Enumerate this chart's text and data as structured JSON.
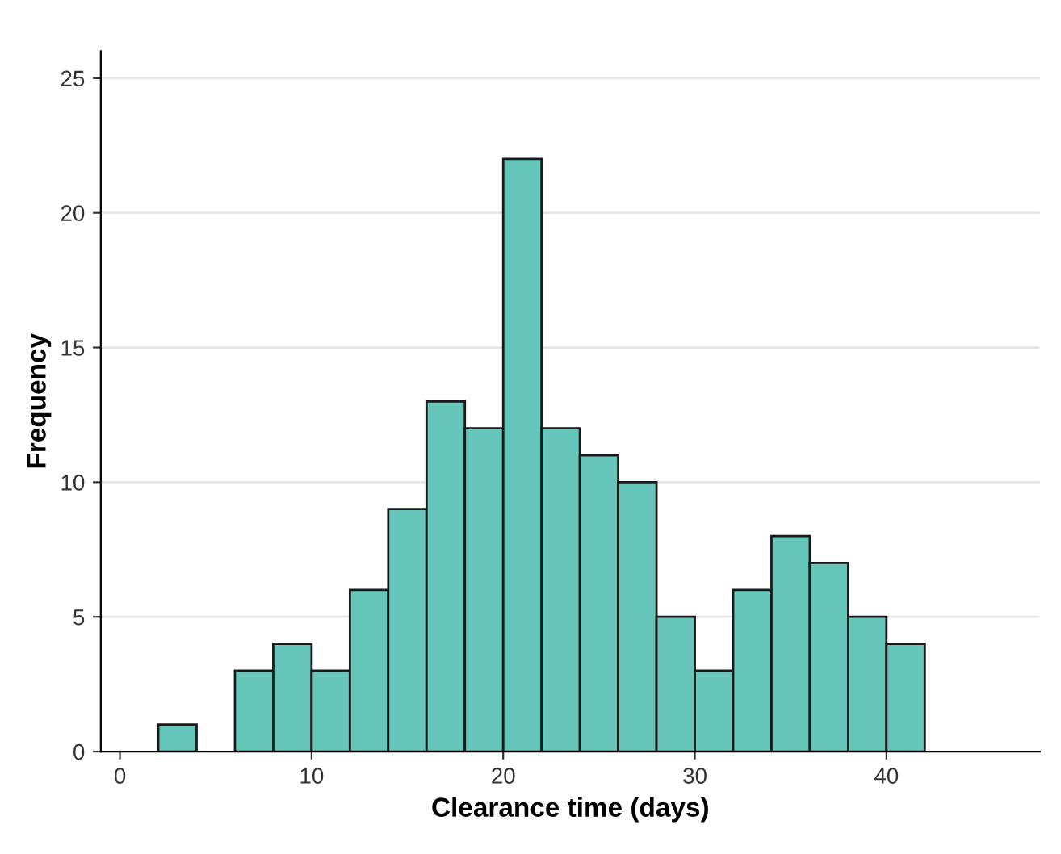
{
  "chart_data": {
    "type": "histogram",
    "xlabel": "Clearance time (days)",
    "ylabel": "Frequency",
    "bins": [
      2,
      4,
      6,
      8,
      10,
      12,
      14,
      16,
      18,
      20,
      22,
      24,
      26,
      28,
      30,
      32,
      34,
      36,
      38,
      40,
      42
    ],
    "values": [
      1,
      0,
      3,
      4,
      3,
      6,
      9,
      13,
      12,
      22,
      12,
      11,
      10,
      5,
      3,
      6,
      8,
      7,
      5,
      4
    ],
    "color": "#66c6ba",
    "xlim": [
      -1,
      48
    ],
    "xticks": [
      0,
      10,
      20,
      30,
      40
    ],
    "ylim": [
      0,
      26
    ],
    "yticks": [
      0,
      5,
      10,
      15,
      20,
      25
    ],
    "grid": "y"
  }
}
